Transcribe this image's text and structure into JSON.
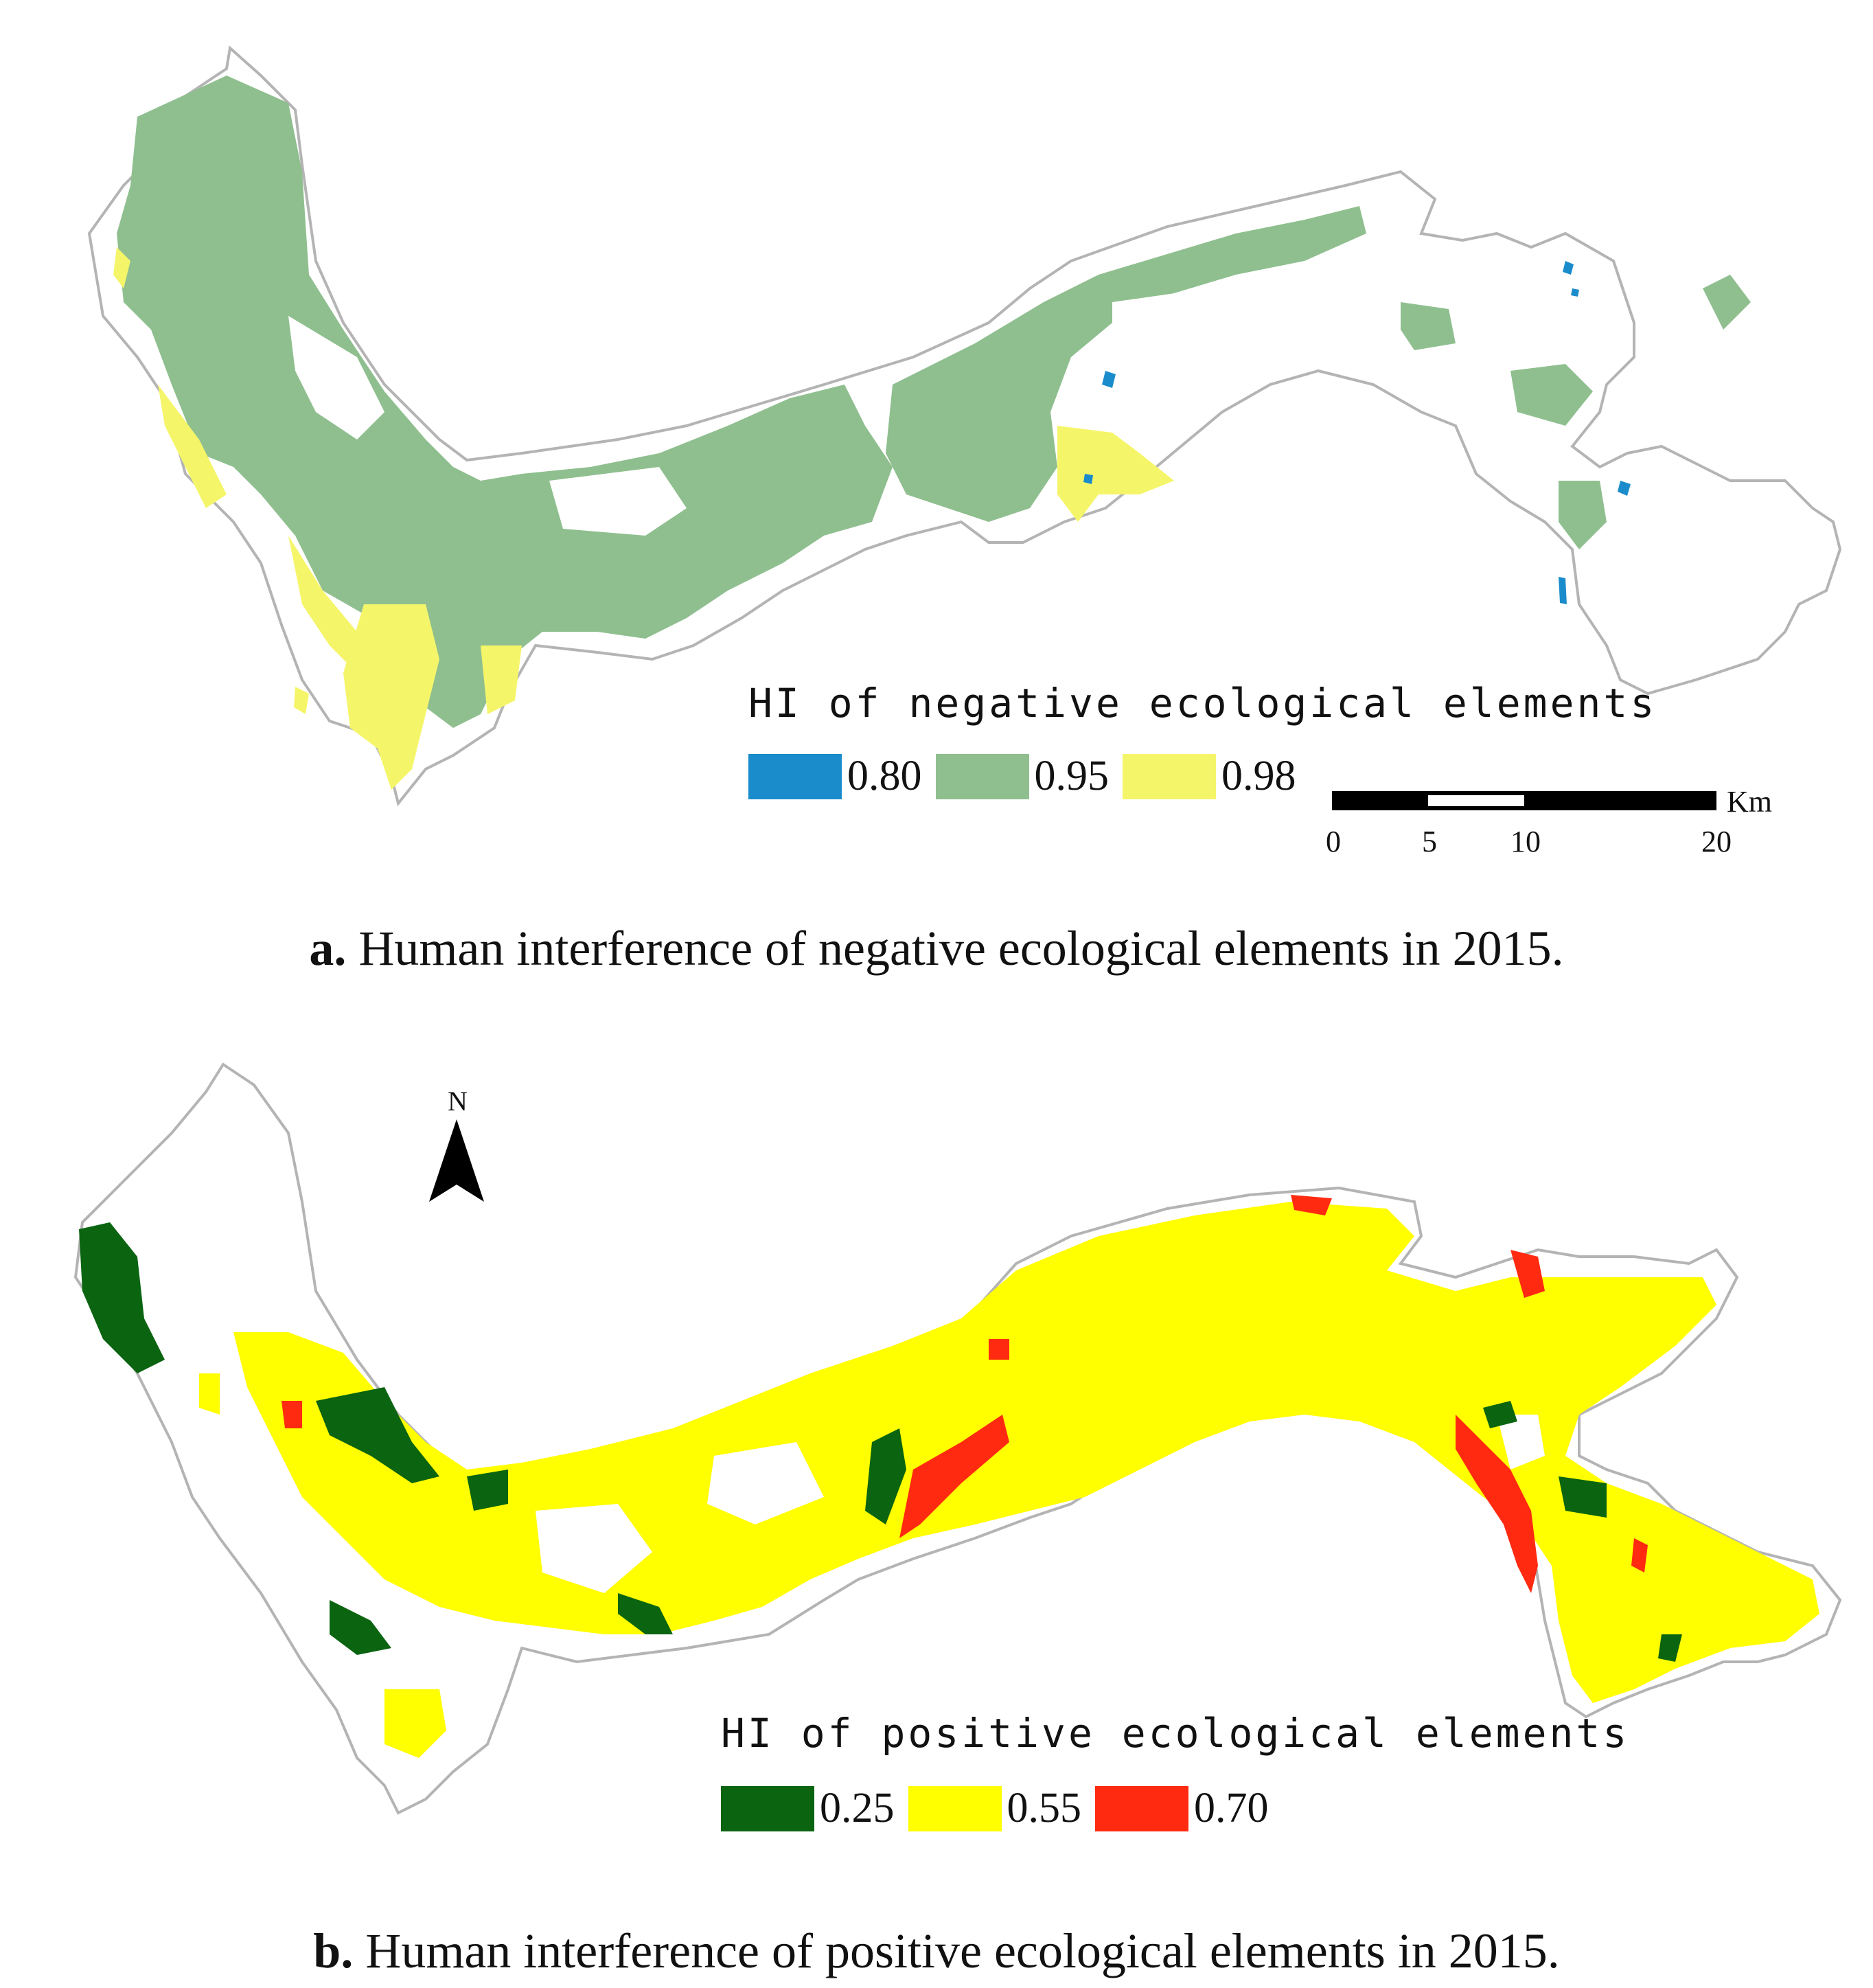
{
  "panel_a": {
    "caption_letter": "a.",
    "caption_text": " Human interference of negative ecological elements in 2015.",
    "legend_title": "HI of negative ecological elements",
    "legend": [
      {
        "label": "0.80",
        "color": "#1a8ccc"
      },
      {
        "label": "0.95",
        "color": "#8fbf8f"
      },
      {
        "label": "0.98",
        "color": "#f5f56a"
      }
    ],
    "scale_bar": {
      "ticks": [
        "0",
        "5",
        "10",
        "20"
      ],
      "unit": "Km"
    }
  },
  "panel_b": {
    "caption_letter": "b.",
    "caption_text": " Human interference of positive ecological elements in 2015.",
    "legend_title": "HI of positive ecological elements",
    "legend": [
      {
        "label": "0.25",
        "color": "#0a6410"
      },
      {
        "label": "0.55",
        "color": "#ffff00"
      },
      {
        "label": "0.70",
        "color": "#ff2a10"
      }
    ],
    "north_label": "N"
  }
}
